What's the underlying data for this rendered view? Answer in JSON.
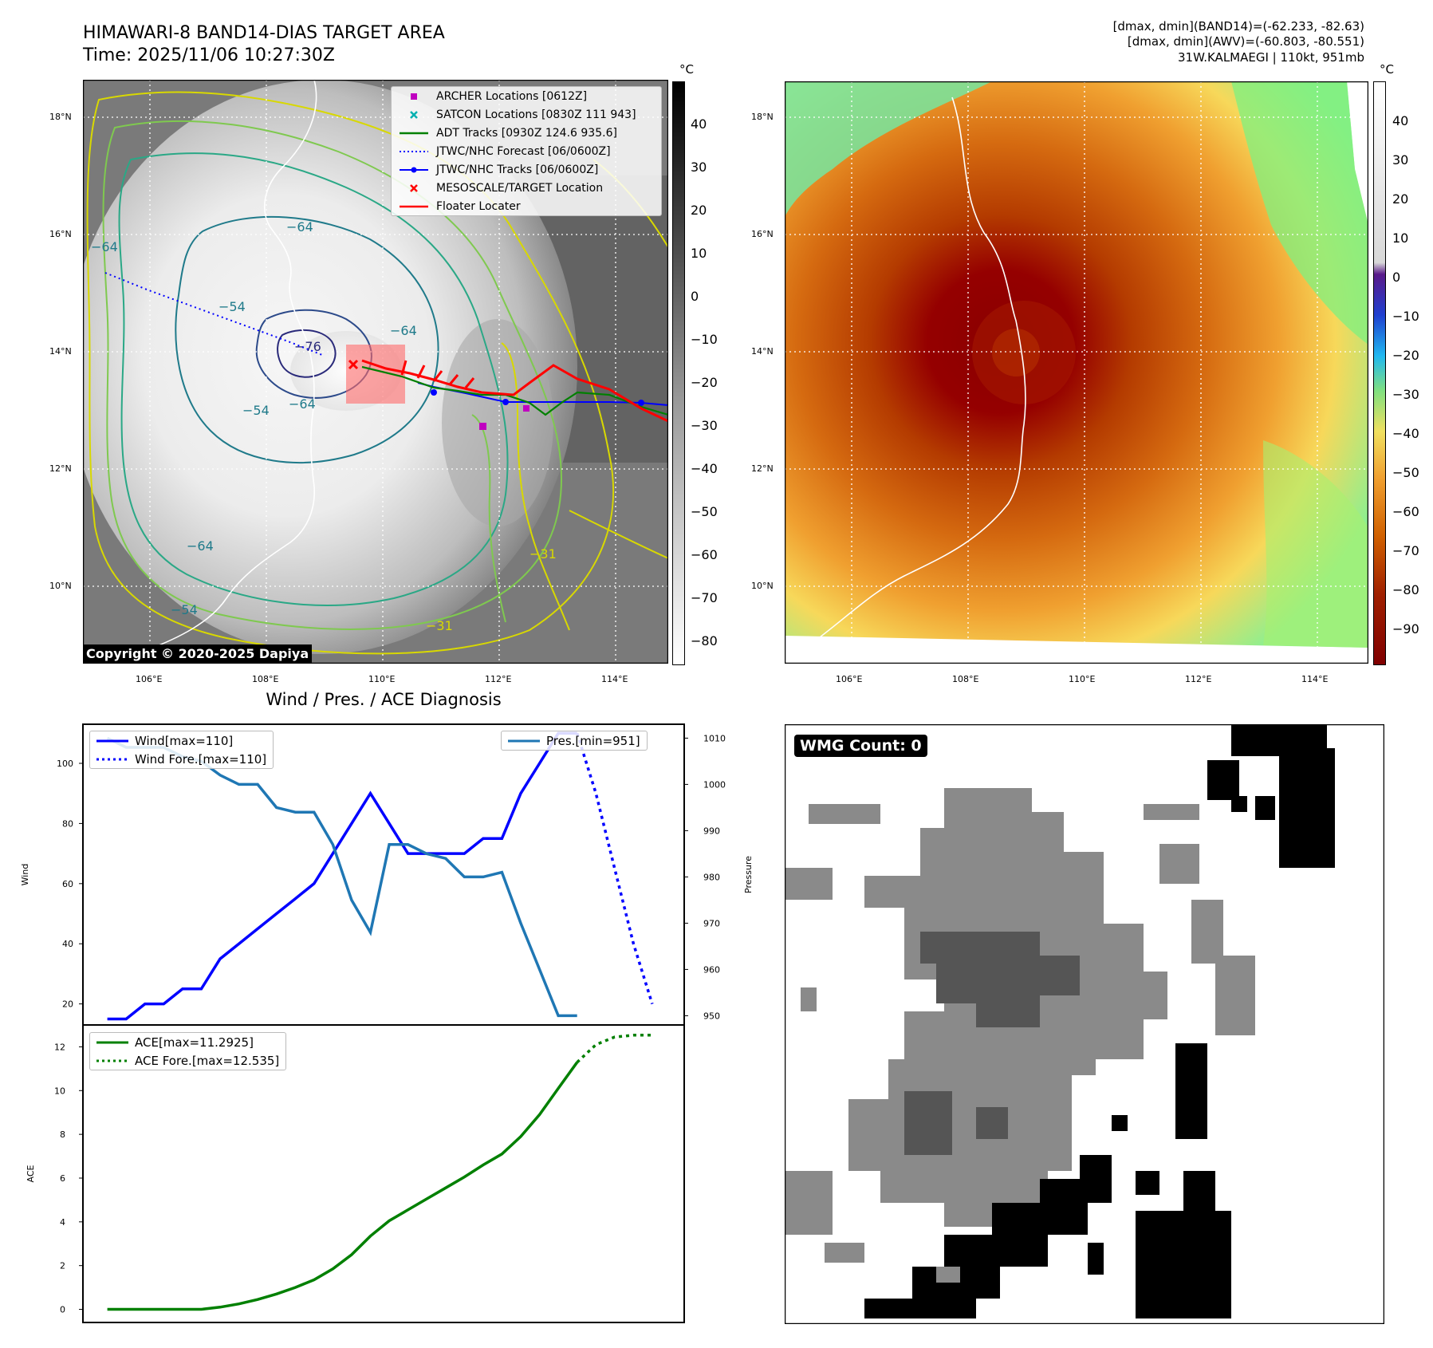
{
  "header": {
    "title_line1": "HIMAWARI-8 BAND14-DIAS TARGET AREA",
    "title_line2": "Time: 2025/11/06 10:27:30Z",
    "right_line1": "[dmax, dmin](BAND14)=(-62.233, -82.63)",
    "right_line2": "[dmax, dmin](AWV)=(-60.803, -80.551)",
    "right_line3": "31W.KALMAEGI | 110kt, 951mb"
  },
  "map_axes": {
    "lat_ticks": [
      "18°N",
      "16°N",
      "14°N",
      "12°N",
      "10°N"
    ],
    "lon_ticks": [
      "106°E",
      "108°E",
      "110°E",
      "112°E",
      "114°E"
    ]
  },
  "left_map": {
    "colorbar_unit": "°C",
    "colorbar_ticks": [
      "40",
      "30",
      "20",
      "10",
      "0",
      "−10",
      "−20",
      "−30",
      "−40",
      "−50",
      "−60",
      "−70",
      "−80"
    ],
    "contour_labels": [
      "−64",
      "−64",
      "−64",
      "−64",
      "−64",
      "−54",
      "−54",
      "−54",
      "−76",
      "−31",
      "−31"
    ],
    "copyright": "Copyright © 2020-2025 Dapiya",
    "legend": [
      {
        "label": "ARCHER Locations [0612Z]",
        "color": "#c000c0",
        "marker": "square"
      },
      {
        "label": "SATCON Locations [0830Z 111 943]",
        "color": "#00b0b0",
        "marker": "x"
      },
      {
        "label": "ADT Tracks [0930Z 124.6 935.6]",
        "color": "#008000",
        "marker": "line"
      },
      {
        "label": "JTWC/NHC Forecast [06/0600Z]",
        "color": "#0000ff",
        "marker": "dotted"
      },
      {
        "label": "JTWC/NHC Tracks [06/0600Z]",
        "color": "#0000ff",
        "marker": "line-dot"
      },
      {
        "label": "MESOSCALE/TARGET Location",
        "color": "#ff0000",
        "marker": "x"
      },
      {
        "label": "Floater Locater",
        "color": "#ff0000",
        "marker": "line"
      }
    ]
  },
  "right_map": {
    "colorbar_unit": "°C",
    "colorbar_ticks": [
      "40",
      "30",
      "20",
      "10",
      "0",
      "−10",
      "−20",
      "−30",
      "−40",
      "−50",
      "−60",
      "−70",
      "−80",
      "−90"
    ]
  },
  "wmg_panel": {
    "label": "WMG Count: 0"
  },
  "chart_data": [
    {
      "type": "line",
      "title": "Wind / Pres. / ACE Diagnosis",
      "ylabel": "Wind",
      "ylabel_right": "Pressure",
      "ylim": [
        13,
        113
      ],
      "ylim_right": [
        948,
        1013
      ],
      "yticks": [
        20,
        40,
        60,
        80,
        100
      ],
      "yticks_right": [
        950,
        960,
        970,
        980,
        990,
        1000,
        1010
      ],
      "legend_left": [
        {
          "label": "Wind[max=110]",
          "color": "#0000ff",
          "style": "solid"
        },
        {
          "label": "Wind Fore.[max=110]",
          "color": "#0000ff",
          "style": "dotted"
        }
      ],
      "legend_right": [
        {
          "label": "Pres.[min=951]",
          "color": "#1f77b4",
          "style": "solid"
        }
      ],
      "x": [
        0,
        1,
        2,
        3,
        4,
        5,
        6,
        7,
        8,
        9,
        10,
        11,
        12,
        13,
        14,
        15,
        16,
        17,
        18,
        19,
        20,
        21,
        22,
        23,
        24,
        25
      ],
      "series": [
        {
          "name": "Wind[max=110]",
          "axis": "left",
          "color": "#0000ff",
          "style": "solid",
          "x": [
            0,
            1,
            2,
            3,
            4,
            5,
            6,
            7,
            8,
            9,
            10,
            11,
            12,
            13,
            14,
            15,
            16,
            17,
            18,
            19,
            20,
            21,
            22,
            23,
            24,
            25
          ],
          "values": [
            15,
            15,
            20,
            20,
            25,
            25,
            35,
            40,
            45,
            50,
            55,
            60,
            70,
            80,
            90,
            80,
            70,
            70,
            70,
            70,
            75,
            75,
            90,
            100,
            110,
            110
          ]
        },
        {
          "name": "Wind Fore.[max=110]",
          "axis": "left",
          "color": "#0000ff",
          "style": "dotted",
          "x": [
            25,
            26,
            27,
            28,
            29
          ],
          "values": [
            110,
            90,
            65,
            40,
            20
          ]
        },
        {
          "name": "Pres.[min=951]",
          "axis": "right",
          "color": "#1f77b4",
          "style": "solid",
          "x": [
            0,
            1,
            2,
            3,
            4,
            5,
            6,
            7,
            8,
            9,
            10,
            11,
            12,
            13,
            14,
            15,
            16,
            17,
            18,
            19,
            20,
            21,
            22,
            23,
            24,
            25
          ],
          "values": [
            1010,
            1008,
            1008,
            1008,
            1006,
            1005,
            1002,
            1000,
            1000,
            995,
            994,
            994,
            987,
            975,
            968,
            987,
            987,
            985,
            984,
            980,
            980,
            981,
            970,
            960,
            950,
            950
          ]
        }
      ]
    },
    {
      "type": "line",
      "ylabel": "ACE",
      "ylim": [
        -0.6,
        13.0
      ],
      "yticks": [
        0,
        2,
        4,
        6,
        8,
        10,
        12
      ],
      "legend": [
        {
          "label": "ACE[max=11.2925]",
          "color": "#008000",
          "style": "solid"
        },
        {
          "label": "ACE Fore.[max=12.535]",
          "color": "#008000",
          "style": "dotted"
        }
      ],
      "series": [
        {
          "name": "ACE[max=11.2925]",
          "color": "#008000",
          "style": "solid",
          "x": [
            0,
            1,
            2,
            3,
            4,
            5,
            6,
            7,
            8,
            9,
            10,
            11,
            12,
            13,
            14,
            15,
            16,
            17,
            18,
            19,
            20,
            21,
            22,
            23,
            24,
            25
          ],
          "values": [
            0,
            0,
            0,
            0,
            0,
            0,
            0.1,
            0.25,
            0.45,
            0.7,
            1.0,
            1.35,
            1.85,
            2.5,
            3.35,
            4.05,
            4.55,
            5.05,
            5.55,
            6.05,
            6.6,
            7.1,
            7.9,
            8.9,
            10.1,
            11.2925
          ]
        },
        {
          "name": "ACE Fore.[max=12.535]",
          "color": "#008000",
          "style": "dotted",
          "x": [
            25,
            26,
            27,
            28,
            29
          ],
          "values": [
            11.2925,
            12.1,
            12.45,
            12.535,
            12.535
          ]
        }
      ]
    }
  ]
}
